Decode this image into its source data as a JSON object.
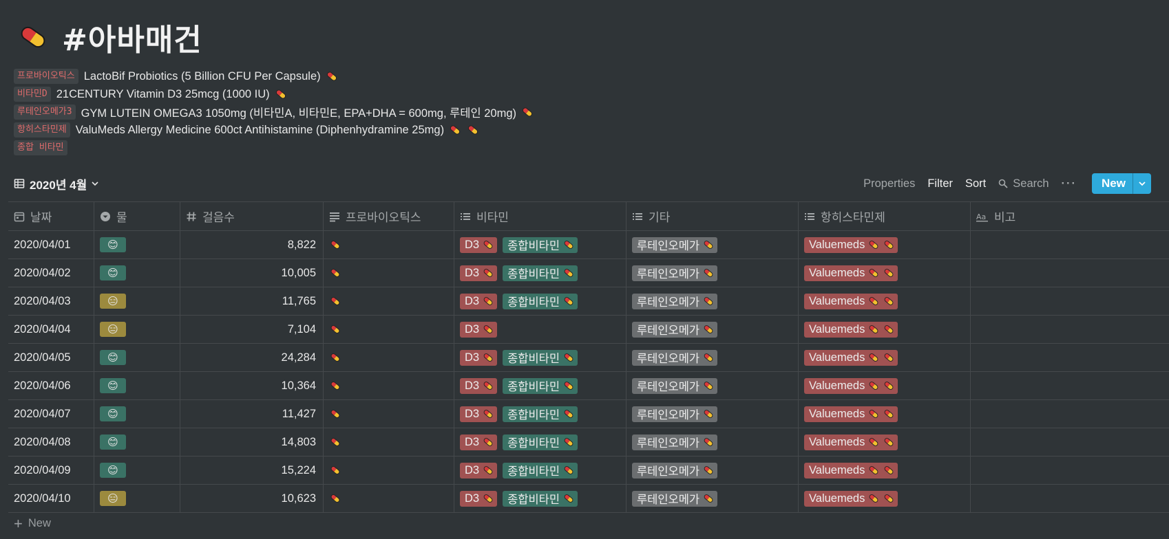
{
  "page": {
    "title": "#아바매건",
    "icon": "pill-icon",
    "properties": [
      {
        "label": "프로바이오틱스",
        "value": "LactoBif Probiotics (5 Billion CFU Per Capsule)",
        "pills": 1
      },
      {
        "label": "비타민D",
        "value": "21CENTURY Vitamin D3 25mcg (1000 IU)",
        "pills": 1
      },
      {
        "label": "루테인오메가3",
        "value": "GYM LUTEIN OMEGA3 1050mg (비타민A, 비타민E, EPA+DHA = 600mg, 루테인 20mg)",
        "pills": 1
      },
      {
        "label": "항히스타민제",
        "value": "ValuMeds Allergy Medicine 600ct Antihistamine (Diphenhydramine 25mg)",
        "pills": 2
      },
      {
        "label": "종합 비타민",
        "value": "",
        "pills": 0
      }
    ]
  },
  "view": {
    "name": "2020년 4월",
    "actions": {
      "properties": "Properties",
      "filter": "Filter",
      "sort": "Sort",
      "search": "Search",
      "more": "···",
      "new": "New"
    }
  },
  "table": {
    "columns": [
      {
        "label": "날짜",
        "icon": "calendar-icon"
      },
      {
        "label": "물",
        "icon": "select-icon"
      },
      {
        "label": "걸음수",
        "icon": "hash-icon"
      },
      {
        "label": "프로바이오틱스",
        "icon": "text-icon"
      },
      {
        "label": "비타민",
        "icon": "multiselect-icon"
      },
      {
        "label": "기타",
        "icon": "multiselect-icon"
      },
      {
        "label": "항히스타민제",
        "icon": "multiselect-icon"
      },
      {
        "label": "비고",
        "icon": "text-aa-icon"
      }
    ],
    "rows": [
      {
        "date": "2020/04/01",
        "mood": "😊",
        "mood_color": "#3a7265",
        "steps": "8,822",
        "vitamins": [
          "D3",
          "종합비타민"
        ],
        "other": "루테인오메가",
        "antihistamine": "Valuemeds",
        "note": ""
      },
      {
        "date": "2020/04/02",
        "mood": "😊",
        "mood_color": "#3a7265",
        "steps": "10,005",
        "vitamins": [
          "D3",
          "종합비타민"
        ],
        "other": "루테인오메가",
        "antihistamine": "Valuemeds",
        "note": ""
      },
      {
        "date": "2020/04/03",
        "mood": "😑",
        "mood_color": "#9c8a3e",
        "steps": "11,765",
        "vitamins": [
          "D3",
          "종합비타민"
        ],
        "other": "루테인오메가",
        "antihistamine": "Valuemeds",
        "note": ""
      },
      {
        "date": "2020/04/04",
        "mood": "😑",
        "mood_color": "#9c8a3e",
        "steps": "7,104",
        "vitamins": [
          "D3"
        ],
        "other": "루테인오메가",
        "antihistamine": "Valuemeds",
        "note": ""
      },
      {
        "date": "2020/04/05",
        "mood": "😊",
        "mood_color": "#3a7265",
        "steps": "24,284",
        "vitamins": [
          "D3",
          "종합비타민"
        ],
        "other": "루테인오메가",
        "antihistamine": "Valuemeds",
        "note": ""
      },
      {
        "date": "2020/04/06",
        "mood": "😊",
        "mood_color": "#3a7265",
        "steps": "10,364",
        "vitamins": [
          "D3",
          "종합비타민"
        ],
        "other": "루테인오메가",
        "antihistamine": "Valuemeds",
        "note": ""
      },
      {
        "date": "2020/04/07",
        "mood": "😊",
        "mood_color": "#3a7265",
        "steps": "11,427",
        "vitamins": [
          "D3",
          "종합비타민"
        ],
        "other": "루테인오메가",
        "antihistamine": "Valuemeds",
        "note": ""
      },
      {
        "date": "2020/04/08",
        "mood": "😊",
        "mood_color": "#3a7265",
        "steps": "14,803",
        "vitamins": [
          "D3",
          "종합비타민"
        ],
        "other": "루테인오메가",
        "antihistamine": "Valuemeds",
        "note": ""
      },
      {
        "date": "2020/04/09",
        "mood": "😊",
        "mood_color": "#3a7265",
        "steps": "15,224",
        "vitamins": [
          "D3",
          "종합비타민"
        ],
        "other": "루테인오메가",
        "antihistamine": "Valuemeds",
        "note": ""
      },
      {
        "date": "2020/04/10",
        "mood": "😑",
        "mood_color": "#9c8a3e",
        "steps": "10,623",
        "vitamins": [
          "D3",
          "종합비타민"
        ],
        "other": "루테인오메가",
        "antihistamine": "Valuemeds",
        "note": ""
      }
    ],
    "add_row_label": "New"
  },
  "colors": {
    "background": "#2f3437",
    "accent": "#2eaadc",
    "tag_red": "#a05252",
    "tag_green": "#3a7265",
    "tag_gray": "#6b6e70",
    "label_red": "#e06c6c"
  }
}
